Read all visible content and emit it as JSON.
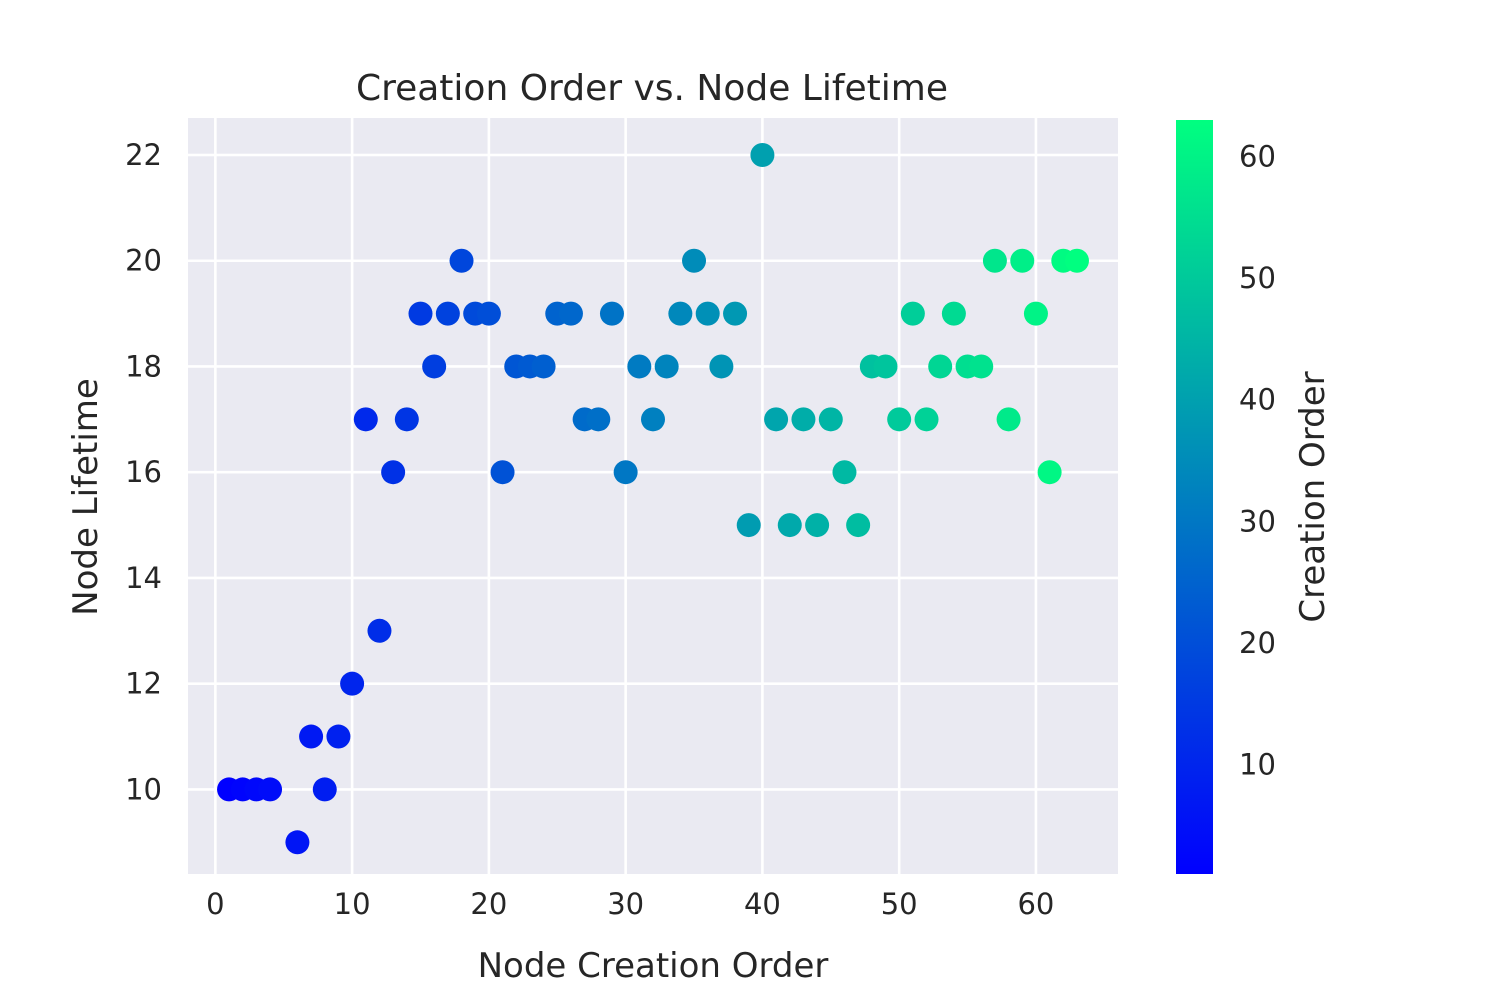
{
  "chart_data": {
    "type": "scatter",
    "title": "Creation Order vs. Node Lifetime",
    "xlabel": "Node Creation Order",
    "ylabel": "Node Lifetime",
    "xlim": [
      -2,
      66
    ],
    "ylim": [
      8.4,
      22.7
    ],
    "xticks": [
      0,
      10,
      20,
      30,
      40,
      50,
      60
    ],
    "yticks": [
      10,
      12,
      14,
      16,
      18,
      20,
      22
    ],
    "grid": true,
    "colormap": "winter",
    "colors": {
      "low": "#0000ff",
      "high": "#00ff80",
      "plot_bg": "#eaeaf2",
      "grid": "#ffffff"
    },
    "colorbar": {
      "label": "Creation Order",
      "range": [
        1,
        63
      ],
      "ticks": [
        10,
        20,
        30,
        40,
        50,
        60
      ]
    },
    "x": [
      1,
      2,
      3,
      4,
      6,
      7,
      8,
      9,
      10,
      11,
      12,
      13,
      14,
      15,
      16,
      17,
      18,
      19,
      20,
      21,
      22,
      23,
      24,
      25,
      26,
      27,
      28,
      29,
      30,
      31,
      32,
      33,
      34,
      35,
      36,
      37,
      38,
      39,
      40,
      41,
      42,
      43,
      44,
      45,
      46,
      47,
      48,
      49,
      50,
      51,
      52,
      53,
      54,
      55,
      56,
      57,
      58,
      59,
      60,
      61,
      62,
      63
    ],
    "y": [
      10,
      10,
      10,
      10,
      9,
      11,
      10,
      11,
      12,
      17,
      13,
      16,
      17,
      19,
      18,
      19,
      20,
      19,
      19,
      16,
      18,
      18,
      18,
      19,
      19,
      17,
      17,
      19,
      16,
      18,
      17,
      18,
      19,
      20,
      19,
      18,
      19,
      15,
      22,
      17,
      15,
      17,
      15,
      17,
      16,
      15,
      18,
      18,
      17,
      19,
      17,
      18,
      19,
      18,
      18,
      20,
      17,
      20,
      19,
      16,
      20,
      20
    ]
  }
}
